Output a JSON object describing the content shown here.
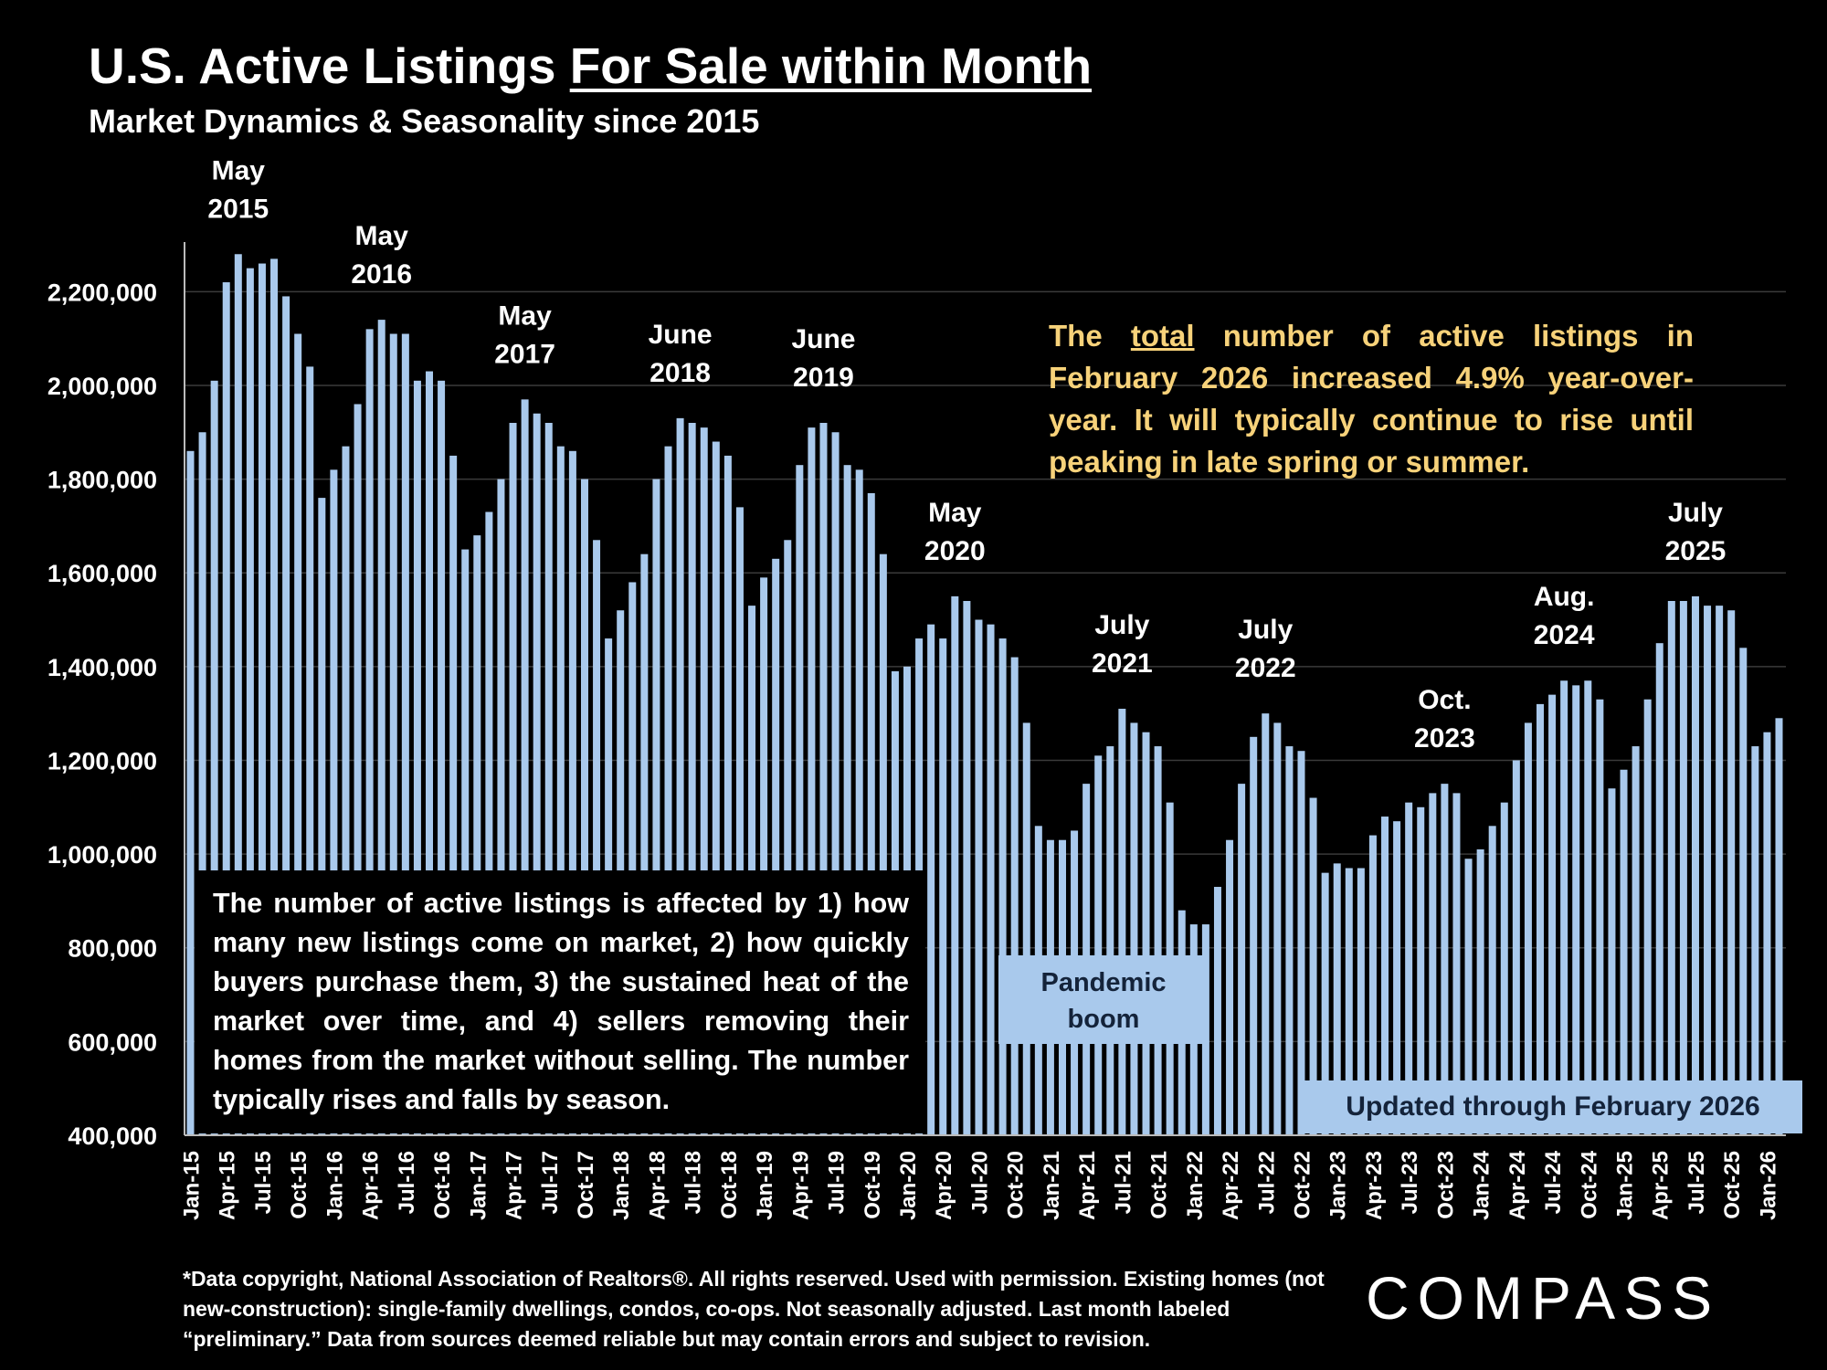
{
  "title_plain": "U.S. Active Listings ",
  "title_underlined": "For Sale within Month",
  "subtitle": "Market Dynamics & Seasonality since 2015",
  "callout": {
    "pre": "The ",
    "underlined": "total",
    "post": " number of active listings in February 2026 increased 4.9% year-over-year. It will typically continue to rise until peaking in late spring or summer."
  },
  "note_box": "The number of active listings is affected by 1) how many new listings come on market, 2) how quickly buyers purchase them, 3) the sustained heat of the market over time, and 4) sellers removing their homes from the market without selling. The number typically rises and falls by season.",
  "pandemic_label": [
    "Pandemic",
    "boom"
  ],
  "updated_label": "Updated through February 2026",
  "footnote": "*Data copyright, National Association of Realtors®. All rights reserved. Used with permission. Existing homes (not new-construction): single-family dwellings, condos, co-ops. Not seasonally adjusted. Last month labeled “preliminary.” Data from sources deemed reliable but may contain errors and subject to revision.",
  "logo": "COMPASS",
  "colors": {
    "background": "#000000",
    "bar": "#a9c9ec",
    "callout_text": "#f7d27a",
    "grid": "#3a3a3a"
  },
  "chart_data": {
    "type": "bar",
    "title": "U.S. Active Listings For Sale within Month",
    "subtitle": "Market Dynamics & Seasonality since 2015",
    "xlabel": "",
    "ylabel": "",
    "ylim": [
      400000,
      2300000
    ],
    "yticks": [
      400000,
      600000,
      800000,
      1000000,
      1200000,
      1400000,
      1600000,
      1800000,
      2000000,
      2200000
    ],
    "ytick_labels": [
      "400,000",
      "600,000",
      "800,000",
      "1,000,000",
      "1,200,000",
      "1,400,000",
      "1,600,000",
      "1,800,000",
      "2,000,000",
      "2,200,000"
    ],
    "grid": true,
    "x_tick_labels": [
      "Jan-15",
      "Apr-15",
      "Jul-15",
      "Oct-15",
      "Jan-16",
      "Apr-16",
      "Jul-16",
      "Oct-16",
      "Jan-17",
      "Apr-17",
      "Jul-17",
      "Oct-17",
      "Jan-18",
      "Apr-18",
      "Jul-18",
      "Oct-18",
      "Jan-19",
      "Apr-19",
      "Jul-19",
      "Oct-19",
      "Jan-20",
      "Apr-20",
      "Jul-20",
      "Oct-20",
      "Jan-21",
      "Apr-21",
      "Jul-21",
      "Oct-21",
      "Jan-22",
      "Apr-22",
      "Jul-22",
      "Oct-22",
      "Jan-23",
      "Apr-23",
      "Jul-23",
      "Oct-23",
      "Jan-24",
      "Apr-24",
      "Jul-24",
      "Oct-24",
      "Jan-25",
      "Apr-25",
      "Jul-25",
      "Oct-25",
      "Jan-26"
    ],
    "series": [
      {
        "values": [
          1860000,
          1900000,
          2010000,
          2220000,
          2280000,
          2250000,
          2260000,
          2270000,
          2190000,
          2110000,
          2040000,
          1760000,
          1820000,
          1870000,
          1960000,
          2120000,
          2140000,
          2110000,
          2110000,
          2010000,
          2030000,
          2010000,
          1850000,
          1650000,
          1680000,
          1730000,
          1800000,
          1920000,
          1970000,
          1940000,
          1920000,
          1870000,
          1860000,
          1800000,
          1670000,
          1460000,
          1520000,
          1580000,
          1640000,
          1800000,
          1870000,
          1930000,
          1920000,
          1910000,
          1880000,
          1850000,
          1740000,
          1530000,
          1590000,
          1630000,
          1670000,
          1830000,
          1910000,
          1920000,
          1900000,
          1830000,
          1820000,
          1770000,
          1640000,
          1390000,
          1400000,
          1460000,
          1490000,
          1460000,
          1550000,
          1540000,
          1500000,
          1490000,
          1460000,
          1420000,
          1280000,
          1060000,
          1030000,
          1030000,
          1050000,
          1150000,
          1210000,
          1230000,
          1310000,
          1280000,
          1260000,
          1230000,
          1110000,
          880000,
          850000,
          850000,
          930000,
          1030000,
          1150000,
          1250000,
          1300000,
          1280000,
          1230000,
          1220000,
          1120000,
          960000,
          980000,
          970000,
          970000,
          1040000,
          1080000,
          1070000,
          1110000,
          1100000,
          1130000,
          1150000,
          1130000,
          990000,
          1010000,
          1060000,
          1110000,
          1200000,
          1280000,
          1320000,
          1340000,
          1370000,
          1360000,
          1370000,
          1330000,
          1140000,
          1180000,
          1230000,
          1330000,
          1450000,
          1540000,
          1540000,
          1550000,
          1530000,
          1530000,
          1520000,
          1440000,
          1230000,
          1260000,
          1290000
        ]
      }
    ],
    "annotations": [
      {
        "lines": [
          "May",
          "2015"
        ],
        "index": 4
      },
      {
        "lines": [
          "May",
          "2016"
        ],
        "index": 16
      },
      {
        "lines": [
          "May",
          "2017"
        ],
        "index": 28
      },
      {
        "lines": [
          "June",
          "2018"
        ],
        "index": 41
      },
      {
        "lines": [
          "June",
          "2019"
        ],
        "index": 53
      },
      {
        "lines": [
          "May",
          "2020"
        ],
        "index": 64
      },
      {
        "lines": [
          "July",
          "2021"
        ],
        "index": 78
      },
      {
        "lines": [
          "July",
          "2022"
        ],
        "index": 90
      },
      {
        "lines": [
          "Oct.",
          "2023"
        ],
        "index": 105
      },
      {
        "lines": [
          "Aug.",
          "2024"
        ],
        "index": 115
      },
      {
        "lines": [
          "July",
          "2025"
        ],
        "index": 126
      }
    ]
  }
}
